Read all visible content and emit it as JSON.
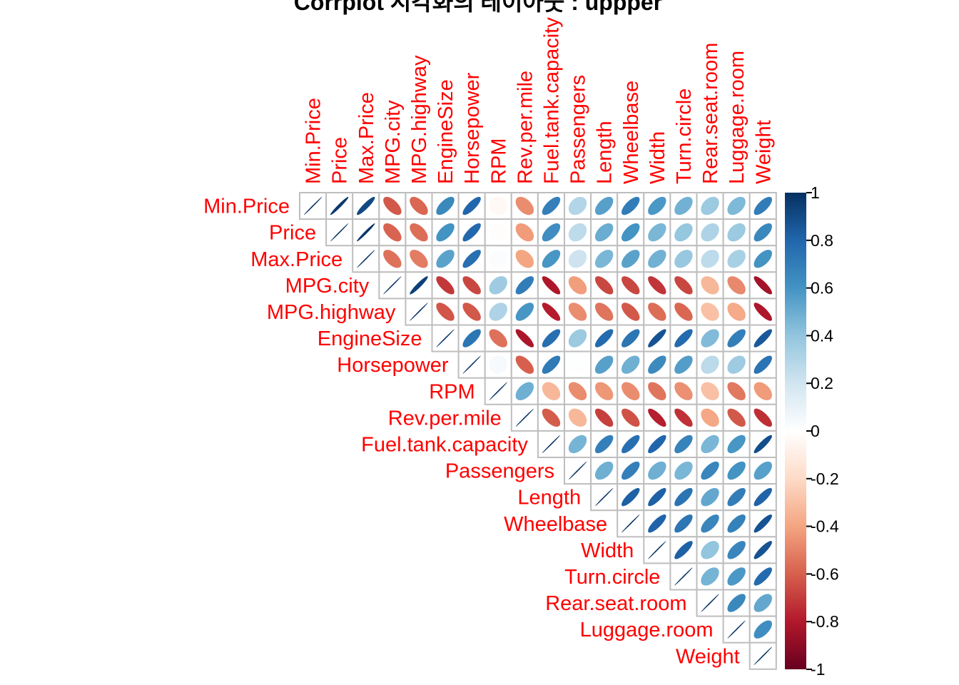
{
  "chart_data": {
    "type": "heatmap",
    "title": "Corrplot 시각화의 레이아웃 : uppper",
    "method": "ellipse",
    "layout": "upper",
    "variables": [
      "Min.Price",
      "Price",
      "Max.Price",
      "MPG.city",
      "MPG.highway",
      "EngineSize",
      "Horsepower",
      "RPM",
      "Rev.per.mile",
      "Fuel.tank.capacity",
      "Passengers",
      "Length",
      "Wheelbase",
      "Width",
      "Turn.circle",
      "Rear.seat.room",
      "Luggage.room",
      "Weight"
    ],
    "matrix": [
      [
        1.0,
        0.97,
        0.91,
        -0.62,
        -0.58,
        0.65,
        0.8,
        -0.04,
        -0.47,
        0.69,
        0.3,
        0.55,
        0.7,
        0.58,
        0.48,
        0.37,
        0.45,
        0.7
      ],
      [
        0.97,
        1.0,
        0.98,
        -0.59,
        -0.56,
        0.6,
        0.79,
        -0.01,
        -0.43,
        0.62,
        0.26,
        0.5,
        0.6,
        0.46,
        0.39,
        0.31,
        0.37,
        0.65
      ],
      [
        0.91,
        0.98,
        1.0,
        -0.55,
        -0.52,
        0.54,
        0.76,
        0.02,
        -0.4,
        0.59,
        0.21,
        0.46,
        0.54,
        0.48,
        0.38,
        0.26,
        0.33,
        0.6
      ],
      [
        -0.62,
        -0.59,
        -0.55,
        1.0,
        0.94,
        -0.71,
        -0.67,
        0.36,
        0.7,
        -0.81,
        -0.42,
        -0.67,
        -0.67,
        -0.72,
        -0.67,
        -0.33,
        -0.48,
        -0.84
      ],
      [
        -0.58,
        -0.56,
        -0.52,
        0.94,
        1.0,
        -0.63,
        -0.62,
        0.31,
        0.59,
        -0.79,
        -0.47,
        -0.54,
        -0.62,
        -0.56,
        -0.58,
        -0.3,
        -0.38,
        -0.81
      ],
      [
        0.65,
        0.6,
        0.54,
        -0.71,
        -0.63,
        1.0,
        0.73,
        -0.55,
        -0.82,
        0.76,
        0.37,
        0.78,
        0.73,
        0.87,
        0.78,
        0.44,
        0.69,
        0.85
      ],
      [
        0.8,
        0.79,
        0.76,
        -0.67,
        -0.62,
        0.73,
        1.0,
        0.04,
        -0.6,
        0.71,
        0.01,
        0.55,
        0.49,
        0.64,
        0.56,
        0.27,
        0.36,
        0.74
      ],
      [
        -0.04,
        -0.01,
        0.02,
        0.36,
        0.31,
        -0.55,
        0.04,
        1.0,
        0.49,
        -0.33,
        -0.47,
        -0.44,
        -0.47,
        -0.54,
        -0.46,
        -0.3,
        -0.53,
        -0.43
      ],
      [
        -0.47,
        -0.43,
        -0.4,
        0.7,
        0.59,
        -0.82,
        -0.6,
        0.49,
        1.0,
        -0.61,
        -0.33,
        -0.69,
        -0.64,
        -0.78,
        -0.73,
        -0.39,
        -0.62,
        -0.74
      ],
      [
        0.69,
        0.62,
        0.59,
        -0.81,
        -0.79,
        0.76,
        0.71,
        -0.33,
        -0.61,
        1.0,
        0.47,
        0.69,
        0.76,
        0.8,
        0.67,
        0.46,
        0.59,
        0.89
      ],
      [
        0.3,
        0.26,
        0.21,
        -0.42,
        -0.47,
        0.37,
        0.01,
        -0.47,
        -0.33,
        0.47,
        1.0,
        0.49,
        0.69,
        0.49,
        0.46,
        0.66,
        0.6,
        0.55
      ],
      [
        0.55,
        0.5,
        0.46,
        -0.67,
        -0.54,
        0.78,
        0.55,
        -0.44,
        -0.69,
        0.69,
        0.49,
        1.0,
        0.82,
        0.82,
        0.74,
        0.52,
        0.7,
        0.81
      ],
      [
        0.7,
        0.6,
        0.54,
        -0.67,
        -0.62,
        0.73,
        0.49,
        -0.47,
        -0.64,
        0.76,
        0.69,
        0.82,
        1.0,
        0.81,
        0.73,
        0.66,
        0.68,
        0.87
      ],
      [
        0.58,
        0.46,
        0.48,
        -0.72,
        -0.56,
        0.87,
        0.64,
        -0.54,
        -0.78,
        0.8,
        0.49,
        0.82,
        0.81,
        1.0,
        0.82,
        0.4,
        0.66,
        0.87
      ],
      [
        0.48,
        0.39,
        0.38,
        -0.67,
        -0.58,
        0.78,
        0.56,
        -0.46,
        -0.73,
        0.67,
        0.46,
        0.74,
        0.73,
        0.82,
        1.0,
        0.47,
        0.58,
        0.78
      ],
      [
        0.37,
        0.31,
        0.26,
        -0.33,
        -0.3,
        0.44,
        0.27,
        -0.3,
        -0.39,
        0.46,
        0.66,
        0.52,
        0.66,
        0.4,
        0.47,
        1.0,
        0.65,
        0.52
      ],
      [
        0.45,
        0.37,
        0.33,
        -0.48,
        -0.38,
        0.69,
        0.36,
        -0.53,
        -0.62,
        0.59,
        0.6,
        0.7,
        0.68,
        0.66,
        0.58,
        0.65,
        1.0,
        0.62
      ],
      [
        0.7,
        0.65,
        0.6,
        -0.84,
        -0.81,
        0.85,
        0.74,
        -0.43,
        -0.74,
        0.89,
        0.55,
        0.81,
        0.87,
        0.87,
        0.78,
        0.52,
        0.62,
        1.0
      ]
    ],
    "legend": {
      "range": [
        -1,
        1
      ],
      "ticks": [
        "1",
        "0.8",
        "0.6",
        "0.4",
        "0.2",
        "0",
        "-0.2",
        "-0.4",
        "-0.6",
        "-0.8",
        "-1"
      ],
      "placement": "right"
    },
    "label_color": "#FF0000",
    "colors": [
      "#67001F",
      "#B2182B",
      "#D6604D",
      "#F4A582",
      "#FDDBC7",
      "#FFFFFF",
      "#D1E5F0",
      "#92C5DE",
      "#4393C3",
      "#2166AC",
      "#053061"
    ],
    "grid_color": "#BEBEBE"
  }
}
